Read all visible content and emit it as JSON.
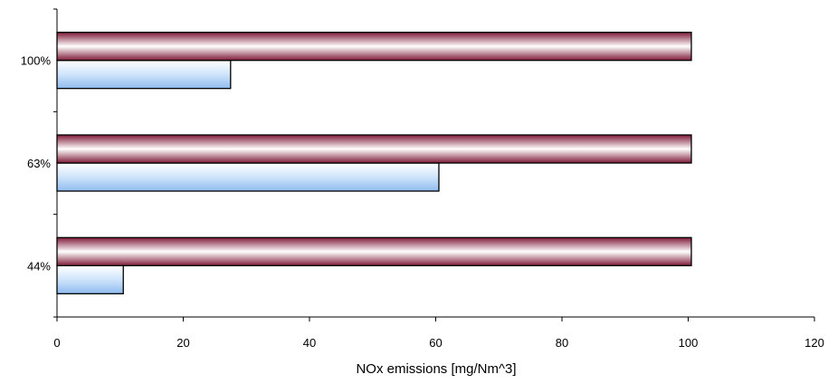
{
  "chart_data": {
    "type": "bar",
    "orientation": "horizontal",
    "categories": [
      "44%",
      "63%",
      "100%"
    ],
    "series": [
      {
        "values": [
          10.5,
          60.5,
          27.5
        ],
        "color": "#9fc8f2"
      },
      {
        "values": [
          100.5,
          100.5,
          100.5
        ],
        "color": "#8a1e3c"
      }
    ],
    "xlabel": "NOx emissions [mg/Nm^3]",
    "ylabel": "",
    "title": "",
    "xlim": [
      0,
      120
    ],
    "xticks": [
      "0",
      "20",
      "40",
      "60",
      "80",
      "100",
      "120"
    ],
    "grid": false,
    "legend": "none"
  }
}
